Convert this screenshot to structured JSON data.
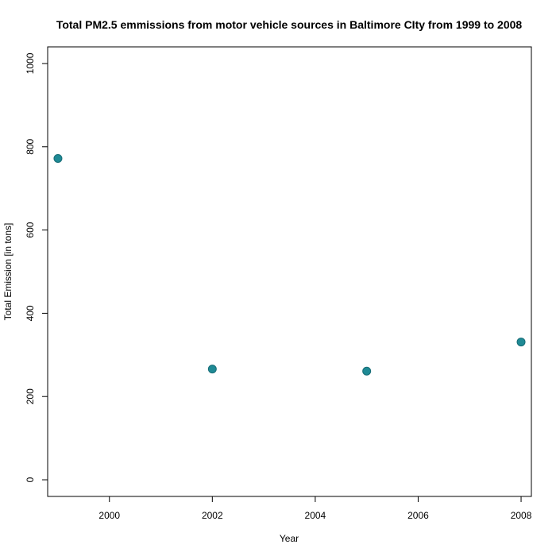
{
  "chart_data": {
    "type": "scatter",
    "title": "Total PM2.5 emmissions from motor vehicle sources in Baltimore CIty from 1999 to 2008",
    "xlabel": "Year",
    "ylabel": "Total Emission [in tons]",
    "xlim": [
      1998.8,
      2008.2
    ],
    "ylim": [
      -40,
      1040
    ],
    "x_ticks": [
      2000,
      2002,
      2004,
      2006,
      2008
    ],
    "y_ticks": [
      0,
      200,
      400,
      600,
      800,
      1000
    ],
    "grid": false,
    "legend": "none",
    "marker_color": "#1f8a95",
    "series": [
      {
        "x": [
          1999,
          2002,
          2005,
          2008
        ],
        "y": [
          772,
          266,
          261,
          331
        ]
      }
    ]
  }
}
